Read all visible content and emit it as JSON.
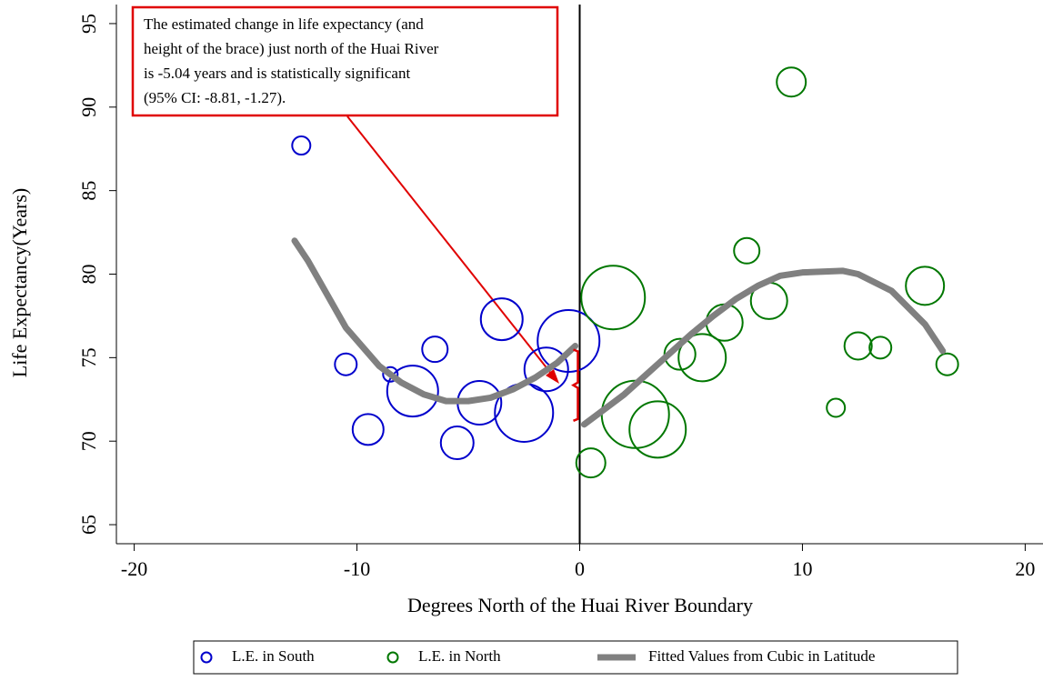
{
  "chart_data": {
    "type": "scatter",
    "x_label": "Degrees North of the Huai River Boundary",
    "y_label": "Life Expectancy(Years)",
    "xlim": [
      -20.8,
      20.8
    ],
    "ylim": [
      63.86,
      96.14
    ],
    "xticks": [
      -20,
      -10,
      0,
      10,
      20
    ],
    "yticks": [
      65,
      70,
      75,
      80,
      85,
      90,
      95
    ],
    "xline": 0,
    "annotation": [
      "The estimated change in life expectancy (and",
      "height of the brace) just north of the Huai River",
      "is -5.04 years and is statistically significant",
      "(95% CI: -8.81, -1.27)."
    ],
    "annotation_color": "#e00000",
    "series": [
      {
        "name": "L.E. in South",
        "color": "#0000cc",
        "kind": "bubble",
        "x": [
          -12.5,
          -10.5,
          -9.5,
          -8.5,
          -7.5,
          -6.5,
          -5.5,
          -4.5,
          -3.5,
          -2.5,
          -1.5,
          -0.5
        ],
        "values": [
          87.7,
          74.6,
          70.7,
          74.0,
          73.0,
          75.5,
          69.9,
          72.3,
          77.3,
          71.7,
          74.3,
          76.0
        ],
        "sizes": [
          10,
          12,
          17,
          8,
          28,
          14,
          18,
          24,
          23,
          32,
          24,
          34
        ]
      },
      {
        "name": "L.E. in North",
        "color": "#007700",
        "kind": "bubble",
        "x": [
          0.5,
          1.5,
          2.5,
          3.5,
          4.5,
          5.5,
          6.5,
          7.5,
          8.5,
          9.5,
          11.5,
          12.5,
          13.5,
          15.5,
          16.5
        ],
        "values": [
          68.7,
          78.6,
          71.6,
          70.7,
          75.2,
          75.0,
          77.1,
          81.4,
          78.4,
          91.5,
          72.0,
          75.7,
          75.6,
          79.3,
          74.6
        ],
        "sizes": [
          16,
          35,
          37,
          31,
          17,
          26,
          20,
          14,
          20,
          16,
          10,
          15,
          12,
          21,
          12
        ]
      },
      {
        "name": "Fitted Values from Cubic in Latitude",
        "color": "#808080",
        "kind": "line",
        "x": [
          -12.8,
          -12.2,
          -10.5,
          -9,
          -8,
          -7,
          -6,
          -5,
          -4,
          -3,
          -2,
          -1,
          -0.2,
          null,
          0.2,
          1,
          2,
          3,
          4,
          5,
          6,
          7,
          8,
          9,
          10,
          11.8,
          12.5,
          14,
          15.5,
          16.3
        ],
        "values": [
          82,
          80.8,
          76.8,
          74.5,
          73.5,
          72.8,
          72.4,
          72.4,
          72.6,
          73.1,
          73.8,
          74.7,
          75.7,
          null,
          71,
          71.8,
          72.8,
          74,
          75.2,
          76.4,
          77.5,
          78.5,
          79.3,
          79.9,
          80.1,
          80.2,
          80,
          79,
          77,
          75.4
        ]
      }
    ]
  }
}
